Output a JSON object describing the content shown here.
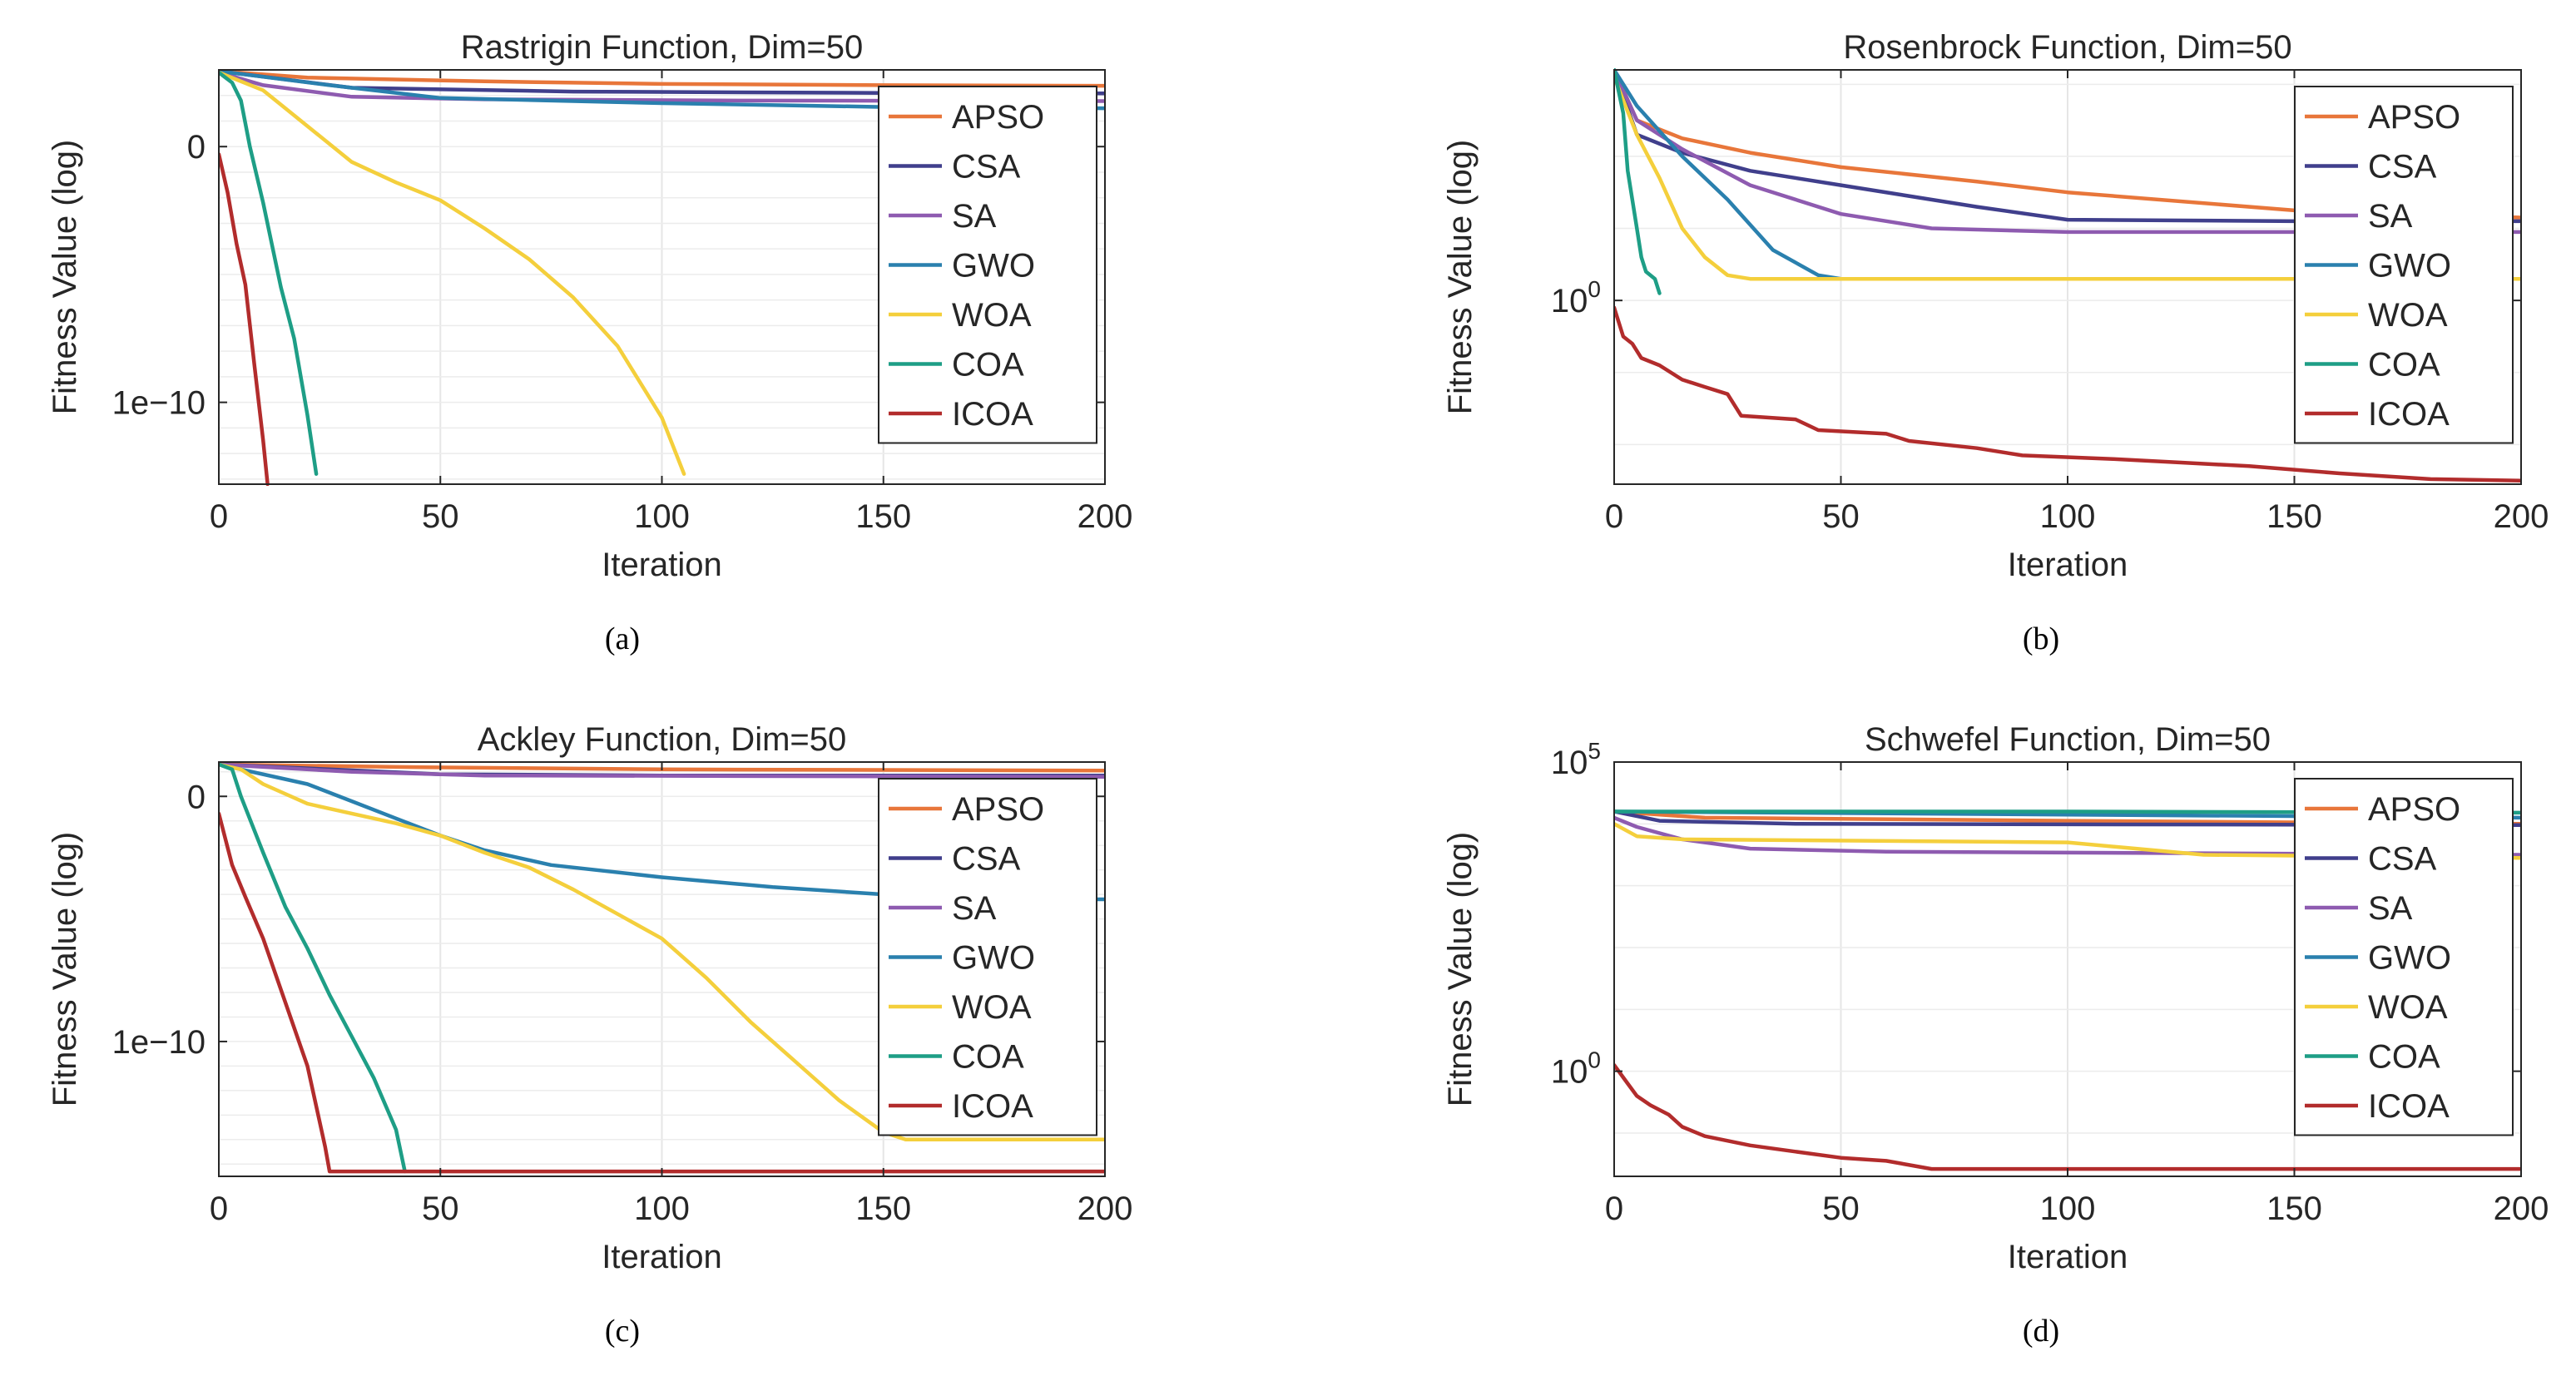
{
  "figure": {
    "captions": [
      "(a)",
      "(b)",
      "(c)",
      "(d)"
    ],
    "algorithms": [
      "APSO",
      "CSA",
      "SA",
      "GWO",
      "WOA",
      "COA",
      "ICOA"
    ],
    "colors": {
      "APSO": "#E8763A",
      "CSA": "#403F8C",
      "SA": "#8E5BB0",
      "GWO": "#2A80AE",
      "WOA": "#F4CF3C",
      "COA": "#1E9E86",
      "ICOA": "#B22C2C"
    }
  },
  "chart_data": [
    {
      "type": "line",
      "title": "Rastrigin Function, Dim=50",
      "xlabel": "Iteration",
      "ylabel": "Fitness Value (log)",
      "xlim": [
        0,
        200
      ],
      "xticks": [
        0,
        50,
        100,
        150,
        200
      ],
      "yscale": "log",
      "ylim_log10": [
        -13.2,
        3.0
      ],
      "yticks": [
        {
          "log": 0,
          "label": "0"
        },
        {
          "log": -10,
          "label": "1e−10"
        }
      ],
      "legend_position": "top-right",
      "grid": true,
      "series": [
        {
          "name": "APSO",
          "points": [
            [
              0,
              2.95
            ],
            [
              20,
              2.7
            ],
            [
              60,
              2.55
            ],
            [
              100,
              2.45
            ],
            [
              150,
              2.4
            ],
            [
              200,
              2.38
            ]
          ]
        },
        {
          "name": "CSA",
          "points": [
            [
              0,
              2.95
            ],
            [
              30,
              2.3
            ],
            [
              80,
              2.15
            ],
            [
              150,
              2.1
            ],
            [
              200,
              2.08
            ]
          ]
        },
        {
          "name": "SA",
          "points": [
            [
              0,
              2.9
            ],
            [
              10,
              2.4
            ],
            [
              30,
              1.95
            ],
            [
              60,
              1.85
            ],
            [
              120,
              1.8
            ],
            [
              200,
              1.78
            ]
          ]
        },
        {
          "name": "GWO",
          "points": [
            [
              0,
              2.95
            ],
            [
              25,
              2.4
            ],
            [
              50,
              1.9
            ],
            [
              100,
              1.7
            ],
            [
              150,
              1.55
            ],
            [
              200,
              1.5
            ]
          ]
        },
        {
          "name": "WOA",
          "points": [
            [
              0,
              2.9
            ],
            [
              10,
              2.2
            ],
            [
              20,
              0.8
            ],
            [
              30,
              -0.6
            ],
            [
              40,
              -1.4
            ],
            [
              50,
              -2.1
            ],
            [
              60,
              -3.2
            ],
            [
              70,
              -4.4
            ],
            [
              80,
              -5.9
            ],
            [
              90,
              -7.8
            ],
            [
              100,
              -10.6
            ],
            [
              105,
              -12.8
            ]
          ]
        },
        {
          "name": "COA",
          "points": [
            [
              0,
              2.9
            ],
            [
              3,
              2.5
            ],
            [
              5,
              1.8
            ],
            [
              7,
              0
            ],
            [
              10,
              -2.2
            ],
            [
              14,
              -5.5
            ],
            [
              17,
              -7.5
            ],
            [
              20,
              -10.5
            ],
            [
              22,
              -12.8
            ]
          ]
        },
        {
          "name": "ICOA",
          "points": [
            [
              0,
              -0.3
            ],
            [
              2,
              -1.8
            ],
            [
              4,
              -3.8
            ],
            [
              6,
              -5.4
            ],
            [
              8,
              -8.5
            ],
            [
              10,
              -11.5
            ],
            [
              11,
              -13.2
            ]
          ]
        }
      ]
    },
    {
      "type": "line",
      "title": "Rosenbrock Function, Dim=50",
      "xlabel": "Iteration",
      "ylabel": "Fitness Value (log)",
      "xlim": [
        0,
        200
      ],
      "xticks": [
        0,
        50,
        100,
        150,
        200
      ],
      "yscale": "log",
      "ylim_log10": [
        -2.55,
        3.2
      ],
      "yticks": [
        {
          "log": 0,
          "label": "10^0"
        }
      ],
      "legend_position": "top-right",
      "grid": true,
      "series": [
        {
          "name": "APSO",
          "points": [
            [
              0,
              3.2
            ],
            [
              5,
              2.5
            ],
            [
              15,
              2.25
            ],
            [
              30,
              2.05
            ],
            [
              50,
              1.85
            ],
            [
              80,
              1.65
            ],
            [
              100,
              1.5
            ],
            [
              150,
              1.25
            ],
            [
              200,
              1.15
            ]
          ]
        },
        {
          "name": "CSA",
          "points": [
            [
              0,
              3.2
            ],
            [
              5,
              2.3
            ],
            [
              15,
              2.05
            ],
            [
              30,
              1.8
            ],
            [
              50,
              1.6
            ],
            [
              80,
              1.3
            ],
            [
              100,
              1.12
            ],
            [
              150,
              1.1
            ],
            [
              200,
              1.1
            ]
          ]
        },
        {
          "name": "SA",
          "points": [
            [
              0,
              3.2
            ],
            [
              5,
              2.5
            ],
            [
              15,
              2.1
            ],
            [
              30,
              1.6
            ],
            [
              50,
              1.2
            ],
            [
              70,
              1.0
            ],
            [
              100,
              0.95
            ],
            [
              150,
              0.95
            ],
            [
              200,
              0.95
            ]
          ]
        },
        {
          "name": "GWO",
          "points": [
            [
              0,
              3.2
            ],
            [
              5,
              2.7
            ],
            [
              15,
              2.0
            ],
            [
              25,
              1.4
            ],
            [
              35,
              0.7
            ],
            [
              45,
              0.35
            ],
            [
              50,
              0.3
            ],
            [
              100,
              0.3
            ],
            [
              200,
              0.3
            ]
          ]
        },
        {
          "name": "WOA",
          "points": [
            [
              0,
              3.1
            ],
            [
              5,
              2.3
            ],
            [
              10,
              1.7
            ],
            [
              15,
              1.0
            ],
            [
              20,
              0.6
            ],
            [
              25,
              0.35
            ],
            [
              30,
              0.3
            ],
            [
              100,
              0.3
            ],
            [
              200,
              0.3
            ]
          ]
        },
        {
          "name": "COA",
          "points": [
            [
              0,
              3.2
            ],
            [
              2,
              2.6
            ],
            [
              3,
              1.8
            ],
            [
              5,
              1.0
            ],
            [
              6,
              0.6
            ],
            [
              7,
              0.4
            ],
            [
              9,
              0.3
            ],
            [
              10,
              0.1
            ]
          ]
        },
        {
          "name": "ICOA",
          "points": [
            [
              0,
              -0.1
            ],
            [
              2,
              -0.5
            ],
            [
              4,
              -0.6
            ],
            [
              6,
              -0.8
            ],
            [
              10,
              -0.9
            ],
            [
              15,
              -1.1
            ],
            [
              20,
              -1.2
            ],
            [
              25,
              -1.3
            ],
            [
              28,
              -1.6
            ],
            [
              40,
              -1.65
            ],
            [
              45,
              -1.8
            ],
            [
              60,
              -1.85
            ],
            [
              65,
              -1.95
            ],
            [
              80,
              -2.05
            ],
            [
              90,
              -2.15
            ],
            [
              110,
              -2.2
            ],
            [
              125,
              -2.25
            ],
            [
              140,
              -2.3
            ],
            [
              160,
              -2.4
            ],
            [
              180,
              -2.48
            ],
            [
              200,
              -2.5
            ]
          ]
        }
      ]
    },
    {
      "type": "line",
      "title": "Ackley Function, Dim=50",
      "xlabel": "Iteration",
      "ylabel": "Fitness Value (log)",
      "xlim": [
        0,
        200
      ],
      "xticks": [
        0,
        50,
        100,
        150,
        200
      ],
      "yscale": "log",
      "ylim_log10": [
        -15.5,
        1.4
      ],
      "yticks": [
        {
          "log": 0,
          "label": "0"
        },
        {
          "log": -10,
          "label": "1e−10"
        }
      ],
      "legend_position": "top-right",
      "grid": true,
      "series": [
        {
          "name": "APSO",
          "points": [
            [
              0,
              1.3
            ],
            [
              40,
              1.2
            ],
            [
              100,
              1.1
            ],
            [
              200,
              1.05
            ]
          ]
        },
        {
          "name": "CSA",
          "points": [
            [
              0,
              1.3
            ],
            [
              50,
              0.9
            ],
            [
              100,
              0.85
            ],
            [
              200,
              0.85
            ]
          ]
        },
        {
          "name": "SA",
          "points": [
            [
              0,
              1.3
            ],
            [
              30,
              1.0
            ],
            [
              60,
              0.85
            ],
            [
              200,
              0.8
            ]
          ]
        },
        {
          "name": "GWO",
          "points": [
            [
              0,
              1.3
            ],
            [
              20,
              0.5
            ],
            [
              30,
              -0.2
            ],
            [
              40,
              -0.9
            ],
            [
              50,
              -1.6
            ],
            [
              60,
              -2.2
            ],
            [
              75,
              -2.8
            ],
            [
              100,
              -3.3
            ],
            [
              125,
              -3.7
            ],
            [
              150,
              -4.0
            ],
            [
              170,
              -4.2
            ],
            [
              200,
              -4.2
            ]
          ]
        },
        {
          "name": "WOA",
          "points": [
            [
              0,
              1.3
            ],
            [
              5,
              1.1
            ],
            [
              10,
              0.5
            ],
            [
              20,
              -0.3
            ],
            [
              30,
              -0.7
            ],
            [
              40,
              -1.1
            ],
            [
              50,
              -1.6
            ],
            [
              60,
              -2.3
            ],
            [
              70,
              -2.9
            ],
            [
              80,
              -3.8
            ],
            [
              90,
              -4.8
            ],
            [
              100,
              -5.8
            ],
            [
              110,
              -7.4
            ],
            [
              120,
              -9.2
            ],
            [
              130,
              -10.8
            ],
            [
              140,
              -12.4
            ],
            [
              150,
              -13.7
            ],
            [
              155,
              -14.0
            ],
            [
              200,
              -14.0
            ]
          ]
        },
        {
          "name": "COA",
          "points": [
            [
              0,
              1.3
            ],
            [
              3,
              1.1
            ],
            [
              5,
              0
            ],
            [
              10,
              -2.3
            ],
            [
              15,
              -4.5
            ],
            [
              20,
              -6.2
            ],
            [
              25,
              -8.1
            ],
            [
              30,
              -9.8
            ],
            [
              35,
              -11.5
            ],
            [
              40,
              -13.6
            ],
            [
              42,
              -15.3
            ]
          ]
        },
        {
          "name": "ICOA",
          "points": [
            [
              0,
              -0.7
            ],
            [
              3,
              -2.8
            ],
            [
              6,
              -4.1
            ],
            [
              10,
              -5.8
            ],
            [
              15,
              -8.4
            ],
            [
              20,
              -11.0
            ],
            [
              24,
              -14.3
            ],
            [
              25,
              -15.3
            ],
            [
              200,
              -15.3
            ]
          ]
        }
      ]
    },
    {
      "type": "line",
      "title": "Schwefel Function, Dim=50",
      "xlabel": "Iteration",
      "ylabel": "Fitness Value (log)",
      "xlim": [
        0,
        200
      ],
      "xticks": [
        0,
        50,
        100,
        150,
        200
      ],
      "yscale": "log",
      "ylim_log10": [
        -1.7,
        5.0
      ],
      "yticks": [
        {
          "log": 0,
          "label": "10^0"
        },
        {
          "log": 5,
          "label": "10^5"
        }
      ],
      "legend_position": "top-right",
      "grid": true,
      "series": [
        {
          "name": "APSO",
          "points": [
            [
              0,
              4.2
            ],
            [
              20,
              4.1
            ],
            [
              100,
              4.05
            ],
            [
              200,
              4.0
            ]
          ]
        },
        {
          "name": "CSA",
          "points": [
            [
              0,
              4.2
            ],
            [
              10,
              4.05
            ],
            [
              40,
              4.0
            ],
            [
              200,
              3.98
            ]
          ]
        },
        {
          "name": "SA",
          "points": [
            [
              0,
              4.1
            ],
            [
              5,
              3.95
            ],
            [
              15,
              3.75
            ],
            [
              30,
              3.6
            ],
            [
              60,
              3.55
            ],
            [
              200,
              3.5
            ]
          ]
        },
        {
          "name": "GWO",
          "points": [
            [
              0,
              4.2
            ],
            [
              100,
              4.15
            ],
            [
              200,
              4.1
            ]
          ]
        },
        {
          "name": "WOA",
          "points": [
            [
              0,
              4.0
            ],
            [
              5,
              3.8
            ],
            [
              15,
              3.75
            ],
            [
              100,
              3.7
            ],
            [
              130,
              3.5
            ],
            [
              200,
              3.45
            ]
          ]
        },
        {
          "name": "COA",
          "points": [
            [
              0,
              4.2
            ],
            [
              100,
              4.2
            ],
            [
              200,
              4.18
            ]
          ]
        },
        {
          "name": "ICOA",
          "points": [
            [
              0,
              0.1
            ],
            [
              3,
              -0.2
            ],
            [
              5,
              -0.4
            ],
            [
              8,
              -0.55
            ],
            [
              12,
              -0.7
            ],
            [
              15,
              -0.9
            ],
            [
              20,
              -1.05
            ],
            [
              30,
              -1.2
            ],
            [
              40,
              -1.3
            ],
            [
              50,
              -1.4
            ],
            [
              60,
              -1.45
            ],
            [
              70,
              -1.58
            ],
            [
              200,
              -1.58
            ]
          ]
        }
      ]
    }
  ]
}
